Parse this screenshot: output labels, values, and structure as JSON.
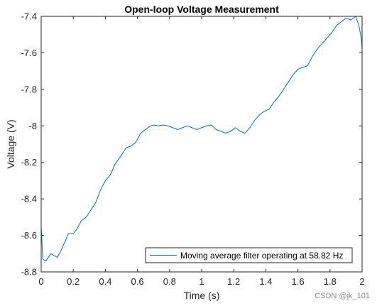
{
  "chart_data": {
    "type": "line",
    "title": "Open-loop Voltage Measurement",
    "xlabel": "Time (s)",
    "ylabel": "Voltage (V)",
    "xlim": [
      0,
      2
    ],
    "ylim": [
      -8.8,
      -7.4
    ],
    "xticks": [
      0,
      0.2,
      0.4,
      0.6,
      0.8,
      1,
      1.2,
      1.4,
      1.6,
      1.8,
      2
    ],
    "xtick_labels": [
      "0",
      "0.2",
      "0.4",
      "0.6",
      "0.8",
      "1",
      "1.2",
      "1.4",
      "1.6",
      "1.8",
      "2"
    ],
    "yticks": [
      -7.4,
      -7.6,
      -7.8,
      -8,
      -8.2,
      -8.4,
      -8.6,
      -8.8
    ],
    "ytick_labels": [
      "-7.4",
      "-7.6",
      "-7.8",
      "-8",
      "-8.2",
      "-8.4",
      "-8.6",
      "-8.8"
    ],
    "grid": false,
    "legend_position": "bottom-right",
    "series": [
      {
        "name": "Moving average filter operating at 58.82 Hz",
        "color": "#0072BD",
        "x": [
          0,
          0.01,
          0.03,
          0.06,
          0.08,
          0.1,
          0.12,
          0.15,
          0.17,
          0.2,
          0.22,
          0.25,
          0.28,
          0.31,
          0.34,
          0.37,
          0.4,
          0.43,
          0.46,
          0.5,
          0.53,
          0.56,
          0.59,
          0.62,
          0.65,
          0.68,
          0.7,
          0.73,
          0.76,
          0.79,
          0.82,
          0.85,
          0.88,
          0.91,
          0.94,
          0.97,
          1.0,
          1.03,
          1.06,
          1.09,
          1.12,
          1.15,
          1.18,
          1.21,
          1.24,
          1.27,
          1.3,
          1.33,
          1.36,
          1.39,
          1.42,
          1.45,
          1.48,
          1.51,
          1.54,
          1.57,
          1.6,
          1.63,
          1.66,
          1.69,
          1.72,
          1.75,
          1.78,
          1.81,
          1.84,
          1.87,
          1.9,
          1.93,
          1.96,
          1.98,
          1.995,
          2.0
        ],
        "y": [
          -8.55,
          -8.73,
          -8.74,
          -8.7,
          -8.71,
          -8.72,
          -8.69,
          -8.63,
          -8.59,
          -8.59,
          -8.57,
          -8.52,
          -8.5,
          -8.46,
          -8.42,
          -8.35,
          -8.3,
          -8.27,
          -8.21,
          -8.16,
          -8.12,
          -8.11,
          -8.09,
          -8.04,
          -8.02,
          -8.0,
          -7.995,
          -8.0,
          -7.995,
          -8.0,
          -8.01,
          -8.02,
          -8.01,
          -8.0,
          -8.01,
          -8.02,
          -8.01,
          -8.0,
          -7.995,
          -8.02,
          -8.03,
          -8.04,
          -8.03,
          -8.01,
          -8.03,
          -8.04,
          -8.01,
          -7.97,
          -7.94,
          -7.92,
          -7.91,
          -7.87,
          -7.84,
          -7.8,
          -7.76,
          -7.72,
          -7.69,
          -7.68,
          -7.67,
          -7.62,
          -7.58,
          -7.55,
          -7.52,
          -7.49,
          -7.45,
          -7.43,
          -7.41,
          -7.42,
          -7.4,
          -7.45,
          -7.52,
          -7.58
        ]
      }
    ]
  },
  "watermark": "CSDN @jk_101"
}
